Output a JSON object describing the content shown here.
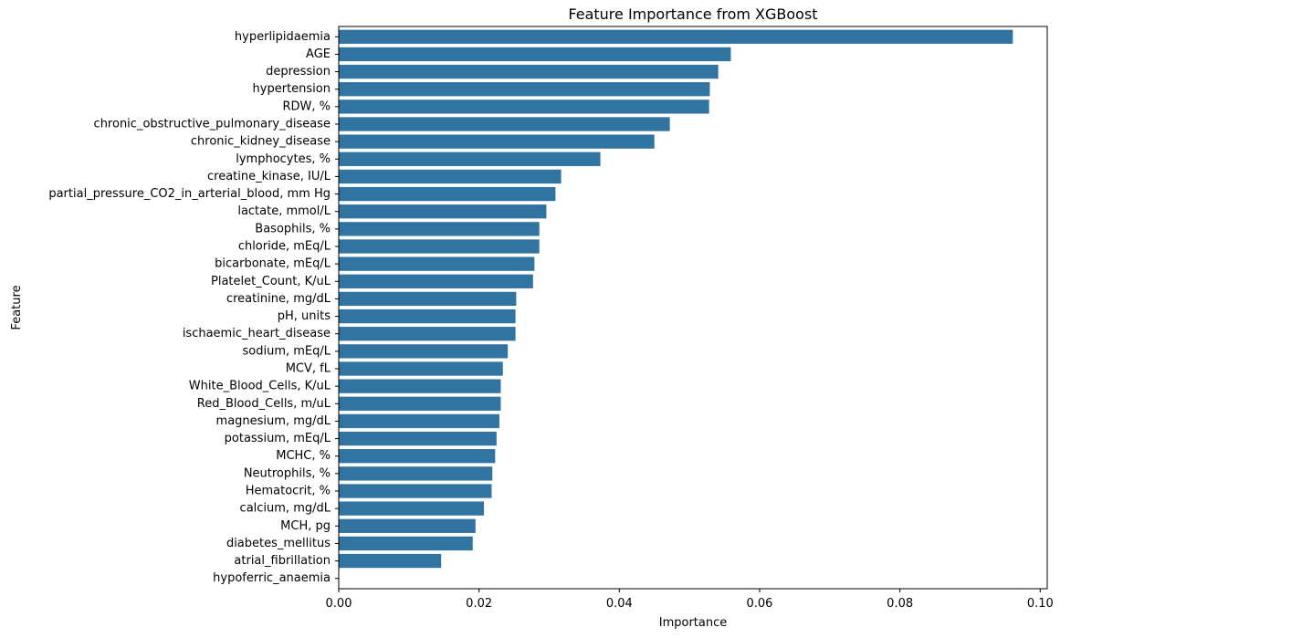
{
  "chart_data": {
    "type": "bar",
    "orientation": "horizontal",
    "title": "Feature Importance from XGBoost",
    "xlabel": "Importance",
    "ylabel": "Feature",
    "xlim": [
      0,
      0.101
    ],
    "xticks": [
      0.0,
      0.02,
      0.04,
      0.06,
      0.08,
      0.1
    ],
    "xtick_labels": [
      "0.00",
      "0.02",
      "0.04",
      "0.06",
      "0.08",
      "0.10"
    ],
    "grid": false,
    "bar_color": "#3274a1",
    "categories": [
      "hyperlipidaemia",
      "AGE",
      "depression",
      "hypertension",
      "RDW, %",
      "chronic_obstructive_pulmonary_disease",
      "chronic_kidney_disease",
      "lymphocytes, %",
      "creatine_kinase, IU/L",
      "partial_pressure_CO2_in_arterial_blood, mm Hg",
      "lactate, mmol/L",
      "Basophils, %",
      "chloride, mEq/L",
      "bicarbonate, mEq/L",
      "Platelet_Count, K/uL",
      "creatinine, mg/dL",
      "pH, units",
      "ischaemic_heart_disease",
      "sodium, mEq/L",
      "MCV, fL",
      "White_Blood_Cells, K/uL",
      "Red_Blood_Cells, m/uL",
      "magnesium, mg/dL",
      "potassium, mEq/L",
      "MCHC, %",
      "Neutrophils, %",
      "Hematocrit, %",
      "calcium, mg/dL",
      "MCH, pg",
      "diabetes_mellitus",
      "atrial_fibrillation",
      "hypoferric_anaemia"
    ],
    "values": [
      0.0961,
      0.0559,
      0.0541,
      0.0529,
      0.0528,
      0.0472,
      0.045,
      0.0373,
      0.0317,
      0.0309,
      0.0296,
      0.0286,
      0.0286,
      0.0279,
      0.0277,
      0.0253,
      0.0252,
      0.0252,
      0.0241,
      0.0234,
      0.0231,
      0.0231,
      0.0229,
      0.0225,
      0.0223,
      0.0219,
      0.0218,
      0.0207,
      0.0195,
      0.0191,
      0.0146,
      0.0
    ]
  }
}
